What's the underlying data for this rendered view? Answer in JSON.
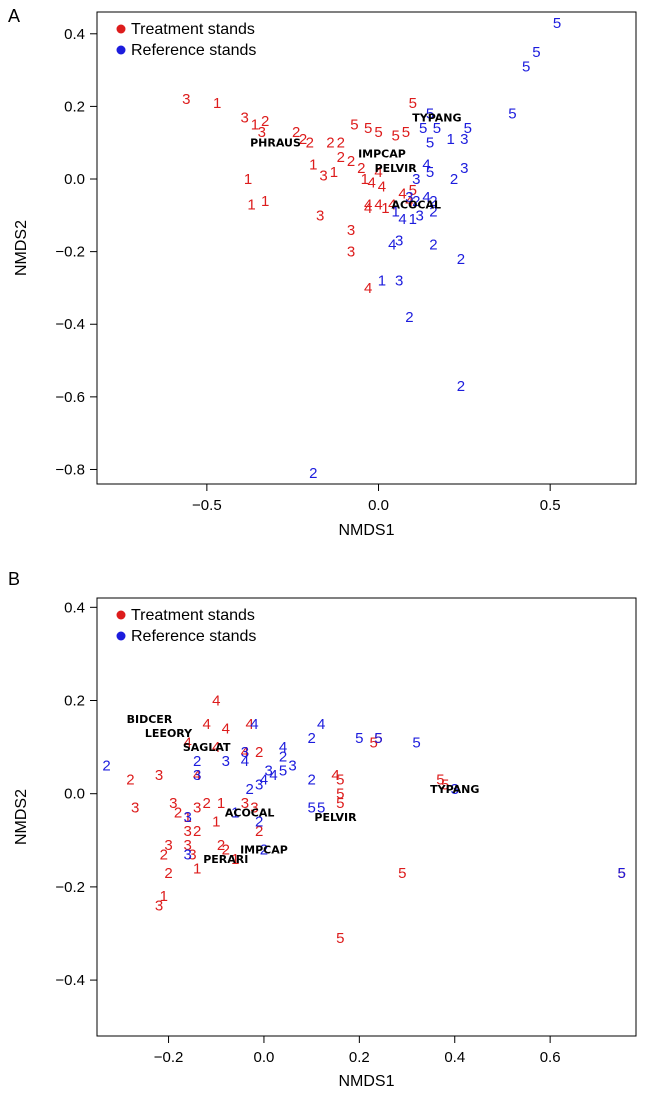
{
  "chart_data": [
    {
      "panel": "A",
      "type": "scatter",
      "xlabel": "NMDS1",
      "ylabel": "NMDS2",
      "xlim": [
        -0.82,
        0.75
      ],
      "ylim": [
        -0.84,
        0.46
      ],
      "xticks": [
        -0.5,
        0.0,
        0.5
      ],
      "yticks": [
        -0.8,
        -0.6,
        -0.4,
        -0.2,
        0.0,
        0.2,
        0.4
      ],
      "xtick_labels": [
        "−0.5",
        "0.0",
        "0.5"
      ],
      "ytick_labels": [
        "−0.8",
        "−0.6",
        "−0.4",
        "−0.2",
        "0.0",
        "0.2",
        "0.4"
      ],
      "legend": {
        "position": "top-left",
        "entries": [
          {
            "label": "Treatment stands",
            "color": "#dd1c1c"
          },
          {
            "label": "Reference stands",
            "color": "#1c1cdd"
          }
        ]
      },
      "series": [
        {
          "name": "Treatment stands",
          "color": "#dd1c1c",
          "points": [
            {
              "x": -0.56,
              "y": 0.22,
              "label": "3"
            },
            {
              "x": -0.47,
              "y": 0.21,
              "label": "1"
            },
            {
              "x": -0.39,
              "y": 0.17,
              "label": "3"
            },
            {
              "x": -0.36,
              "y": 0.15,
              "label": "1"
            },
            {
              "x": -0.33,
              "y": 0.16,
              "label": "2"
            },
            {
              "x": -0.34,
              "y": 0.13,
              "label": "3"
            },
            {
              "x": -0.24,
              "y": 0.13,
              "label": "2"
            },
            {
              "x": -0.22,
              "y": 0.11,
              "label": "2"
            },
            {
              "x": -0.2,
              "y": 0.1,
              "label": "2"
            },
            {
              "x": -0.14,
              "y": 0.1,
              "label": "2"
            },
            {
              "x": -0.11,
              "y": 0.1,
              "label": "2"
            },
            {
              "x": -0.07,
              "y": 0.15,
              "label": "5"
            },
            {
              "x": -0.03,
              "y": 0.14,
              "label": "5"
            },
            {
              "x": 0.0,
              "y": 0.13,
              "label": "5"
            },
            {
              "x": 0.05,
              "y": 0.12,
              "label": "5"
            },
            {
              "x": 0.08,
              "y": 0.13,
              "label": "5"
            },
            {
              "x": 0.1,
              "y": 0.21,
              "label": "5"
            },
            {
              "x": -0.38,
              "y": 0.0,
              "label": "1"
            },
            {
              "x": -0.37,
              "y": -0.07,
              "label": "1"
            },
            {
              "x": -0.33,
              "y": -0.06,
              "label": "1"
            },
            {
              "x": -0.19,
              "y": 0.04,
              "label": "1"
            },
            {
              "x": -0.16,
              "y": 0.01,
              "label": "3"
            },
            {
              "x": -0.13,
              "y": 0.02,
              "label": "1"
            },
            {
              "x": -0.11,
              "y": 0.06,
              "label": "2"
            },
            {
              "x": -0.08,
              "y": 0.05,
              "label": "2"
            },
            {
              "x": -0.05,
              "y": 0.03,
              "label": "2"
            },
            {
              "x": -0.04,
              "y": 0.0,
              "label": "1"
            },
            {
              "x": -0.02,
              "y": -0.01,
              "label": "4"
            },
            {
              "x": 0.0,
              "y": 0.02,
              "label": "4"
            },
            {
              "x": 0.01,
              "y": -0.02,
              "label": "4"
            },
            {
              "x": -0.03,
              "y": -0.07,
              "label": "4"
            },
            {
              "x": 0.0,
              "y": -0.07,
              "label": "4"
            },
            {
              "x": 0.02,
              "y": -0.08,
              "label": "1"
            },
            {
              "x": 0.04,
              "y": -0.07,
              "label": "4"
            },
            {
              "x": 0.07,
              "y": -0.04,
              "label": "4"
            },
            {
              "x": 0.09,
              "y": -0.06,
              "label": "4"
            },
            {
              "x": 0.1,
              "y": -0.03,
              "label": "5"
            },
            {
              "x": -0.17,
              "y": -0.1,
              "label": "3"
            },
            {
              "x": -0.08,
              "y": -0.14,
              "label": "3"
            },
            {
              "x": -0.08,
              "y": -0.2,
              "label": "3"
            },
            {
              "x": -0.03,
              "y": -0.08,
              "label": "4"
            },
            {
              "x": -0.03,
              "y": -0.3,
              "label": "4"
            }
          ]
        },
        {
          "name": "Reference stands",
          "color": "#1c1cdd",
          "points": [
            {
              "x": 0.52,
              "y": 0.43,
              "label": "5"
            },
            {
              "x": 0.46,
              "y": 0.35,
              "label": "5"
            },
            {
              "x": 0.43,
              "y": 0.31,
              "label": "5"
            },
            {
              "x": 0.39,
              "y": 0.18,
              "label": "5"
            },
            {
              "x": 0.15,
              "y": 0.18,
              "label": "5"
            },
            {
              "x": 0.13,
              "y": 0.14,
              "label": "5"
            },
            {
              "x": 0.17,
              "y": 0.14,
              "label": "5"
            },
            {
              "x": 0.15,
              "y": 0.1,
              "label": "5"
            },
            {
              "x": 0.26,
              "y": 0.14,
              "label": "5"
            },
            {
              "x": 0.21,
              "y": 0.11,
              "label": "1"
            },
            {
              "x": 0.25,
              "y": 0.11,
              "label": "3"
            },
            {
              "x": 0.14,
              "y": 0.04,
              "label": "4"
            },
            {
              "x": 0.15,
              "y": 0.02,
              "label": "5"
            },
            {
              "x": 0.22,
              "y": 0.0,
              "label": "2"
            },
            {
              "x": 0.25,
              "y": 0.03,
              "label": "3"
            },
            {
              "x": 0.11,
              "y": 0.0,
              "label": "3"
            },
            {
              "x": 0.09,
              "y": -0.05,
              "label": "3"
            },
            {
              "x": 0.11,
              "y": -0.06,
              "label": "2"
            },
            {
              "x": 0.14,
              "y": -0.05,
              "label": "4"
            },
            {
              "x": 0.16,
              "y": -0.09,
              "label": "2"
            },
            {
              "x": 0.05,
              "y": -0.09,
              "label": "1"
            },
            {
              "x": 0.07,
              "y": -0.11,
              "label": "4"
            },
            {
              "x": 0.1,
              "y": -0.11,
              "label": "1"
            },
            {
              "x": 0.12,
              "y": -0.1,
              "label": "3"
            },
            {
              "x": 0.16,
              "y": -0.06,
              "label": "2"
            },
            {
              "x": 0.04,
              "y": -0.18,
              "label": "4"
            },
            {
              "x": 0.06,
              "y": -0.17,
              "label": "3"
            },
            {
              "x": 0.16,
              "y": -0.18,
              "label": "2"
            },
            {
              "x": 0.24,
              "y": -0.22,
              "label": "2"
            },
            {
              "x": 0.01,
              "y": -0.28,
              "label": "1"
            },
            {
              "x": 0.06,
              "y": -0.28,
              "label": "3"
            },
            {
              "x": 0.09,
              "y": -0.38,
              "label": "2"
            },
            {
              "x": 0.24,
              "y": -0.57,
              "label": "2"
            },
            {
              "x": -0.19,
              "y": -0.81,
              "label": "2"
            }
          ]
        }
      ],
      "species": [
        {
          "x": 0.17,
          "y": 0.17,
          "label": "TYPANG"
        },
        {
          "x": -0.3,
          "y": 0.1,
          "label": "PHRAUS"
        },
        {
          "x": 0.01,
          "y": 0.07,
          "label": "IMPCAP"
        },
        {
          "x": 0.05,
          "y": 0.03,
          "label": "PELVIR"
        },
        {
          "x": 0.11,
          "y": -0.07,
          "label": "ACOCAL"
        }
      ]
    },
    {
      "panel": "B",
      "type": "scatter",
      "xlabel": "NMDS1",
      "ylabel": "NMDS2",
      "xlim": [
        -0.35,
        0.78
      ],
      "ylim": [
        -0.52,
        0.42
      ],
      "xticks": [
        -0.2,
        0.0,
        0.2,
        0.4,
        0.6
      ],
      "yticks": [
        -0.4,
        -0.2,
        0.0,
        0.2,
        0.4
      ],
      "xtick_labels": [
        "−0.2",
        "0.0",
        "0.2",
        "0.4",
        "0.6"
      ],
      "ytick_labels": [
        "−0.4",
        "−0.2",
        "0.0",
        "0.2",
        "0.4"
      ],
      "legend": {
        "position": "top-left",
        "entries": [
          {
            "label": "Treatment stands",
            "color": "#dd1c1c"
          },
          {
            "label": "Reference stands",
            "color": "#1c1cdd"
          }
        ]
      },
      "series": [
        {
          "name": "Treatment stands",
          "color": "#dd1c1c",
          "points": [
            {
              "x": -0.1,
              "y": 0.2,
              "label": "4"
            },
            {
              "x": -0.12,
              "y": 0.15,
              "label": "4"
            },
            {
              "x": -0.08,
              "y": 0.14,
              "label": "4"
            },
            {
              "x": -0.03,
              "y": 0.15,
              "label": "4"
            },
            {
              "x": -0.16,
              "y": 0.11,
              "label": "4"
            },
            {
              "x": -0.1,
              "y": 0.1,
              "label": "4"
            },
            {
              "x": -0.04,
              "y": 0.09,
              "label": "4"
            },
            {
              "x": -0.01,
              "y": 0.09,
              "label": "2"
            },
            {
              "x": -0.28,
              "y": 0.03,
              "label": "2"
            },
            {
              "x": -0.22,
              "y": 0.04,
              "label": "3"
            },
            {
              "x": -0.27,
              "y": -0.03,
              "label": "3"
            },
            {
              "x": -0.14,
              "y": 0.04,
              "label": "4"
            },
            {
              "x": -0.19,
              "y": -0.02,
              "label": "3"
            },
            {
              "x": -0.18,
              "y": -0.04,
              "label": "2"
            },
            {
              "x": -0.16,
              "y": -0.05,
              "label": "1"
            },
            {
              "x": -0.14,
              "y": -0.03,
              "label": "3"
            },
            {
              "x": -0.12,
              "y": -0.02,
              "label": "2"
            },
            {
              "x": -0.09,
              "y": -0.02,
              "label": "1"
            },
            {
              "x": -0.04,
              "y": -0.02,
              "label": "3"
            },
            {
              "x": -0.02,
              "y": -0.03,
              "label": "3"
            },
            {
              "x": -0.1,
              "y": -0.06,
              "label": "1"
            },
            {
              "x": -0.16,
              "y": -0.08,
              "label": "3"
            },
            {
              "x": -0.14,
              "y": -0.08,
              "label": "2"
            },
            {
              "x": -0.01,
              "y": -0.08,
              "label": "2"
            },
            {
              "x": -0.2,
              "y": -0.11,
              "label": "3"
            },
            {
              "x": -0.21,
              "y": -0.13,
              "label": "2"
            },
            {
              "x": -0.16,
              "y": -0.11,
              "label": "3"
            },
            {
              "x": -0.09,
              "y": -0.11,
              "label": "2"
            },
            {
              "x": -0.08,
              "y": -0.12,
              "label": "2"
            },
            {
              "x": -0.2,
              "y": -0.17,
              "label": "2"
            },
            {
              "x": -0.15,
              "y": -0.13,
              "label": "3"
            },
            {
              "x": -0.14,
              "y": -0.16,
              "label": "1"
            },
            {
              "x": -0.06,
              "y": -0.14,
              "label": "1"
            },
            {
              "x": -0.21,
              "y": -0.22,
              "label": "1"
            },
            {
              "x": -0.22,
              "y": -0.24,
              "label": "3"
            },
            {
              "x": 0.15,
              "y": 0.04,
              "label": "4"
            },
            {
              "x": 0.16,
              "y": 0.03,
              "label": "5"
            },
            {
              "x": 0.16,
              "y": 0.0,
              "label": "5"
            },
            {
              "x": 0.16,
              "y": -0.02,
              "label": "5"
            },
            {
              "x": 0.23,
              "y": 0.11,
              "label": "5"
            },
            {
              "x": 0.24,
              "y": 0.12,
              "label": "5"
            },
            {
              "x": 0.37,
              "y": 0.03,
              "label": "5"
            },
            {
              "x": 0.38,
              "y": 0.02,
              "label": "5"
            },
            {
              "x": 0.29,
              "y": -0.17,
              "label": "5"
            },
            {
              "x": 0.16,
              "y": -0.31,
              "label": "5"
            },
            {
              "x": 0.75,
              "y": -0.17,
              "label": "5"
            }
          ]
        },
        {
          "name": "Reference stands",
          "color": "#1c1cdd",
          "points": [
            {
              "x": -0.02,
              "y": 0.15,
              "label": "4"
            },
            {
              "x": 0.12,
              "y": 0.15,
              "label": "4"
            },
            {
              "x": 0.1,
              "y": 0.12,
              "label": "2"
            },
            {
              "x": 0.2,
              "y": 0.12,
              "label": "5"
            },
            {
              "x": 0.24,
              "y": 0.12,
              "label": "5"
            },
            {
              "x": 0.32,
              "y": 0.11,
              "label": "5"
            },
            {
              "x": -0.04,
              "y": 0.09,
              "label": "3"
            },
            {
              "x": -0.14,
              "y": 0.07,
              "label": "2"
            },
            {
              "x": -0.08,
              "y": 0.07,
              "label": "3"
            },
            {
              "x": -0.04,
              "y": 0.07,
              "label": "4"
            },
            {
              "x": 0.04,
              "y": 0.08,
              "label": "2"
            },
            {
              "x": 0.04,
              "y": 0.1,
              "label": "4"
            },
            {
              "x": -0.33,
              "y": 0.06,
              "label": "2"
            },
            {
              "x": -0.14,
              "y": 0.04,
              "label": "3"
            },
            {
              "x": 0.01,
              "y": 0.05,
              "label": "3"
            },
            {
              "x": 0.02,
              "y": 0.04,
              "label": "4"
            },
            {
              "x": 0.04,
              "y": 0.05,
              "label": "5"
            },
            {
              "x": 0.06,
              "y": 0.06,
              "label": "3"
            },
            {
              "x": 0.0,
              "y": 0.03,
              "label": "4"
            },
            {
              "x": -0.03,
              "y": 0.01,
              "label": "2"
            },
            {
              "x": -0.01,
              "y": 0.02,
              "label": "3"
            },
            {
              "x": 0.1,
              "y": 0.03,
              "label": "2"
            },
            {
              "x": 0.1,
              "y": -0.03,
              "label": "5"
            },
            {
              "x": 0.12,
              "y": -0.03,
              "label": "5"
            },
            {
              "x": -0.16,
              "y": -0.05,
              "label": "3"
            },
            {
              "x": -0.06,
              "y": -0.04,
              "label": "1"
            },
            {
              "x": -0.01,
              "y": -0.06,
              "label": "2"
            },
            {
              "x": 0.0,
              "y": -0.12,
              "label": "2"
            },
            {
              "x": -0.16,
              "y": -0.13,
              "label": "3"
            },
            {
              "x": 0.4,
              "y": 0.01,
              "label": "3"
            },
            {
              "x": 0.75,
              "y": -0.17,
              "label": "5"
            }
          ]
        }
      ],
      "species": [
        {
          "x": -0.24,
          "y": 0.16,
          "label": "BIDCER"
        },
        {
          "x": -0.2,
          "y": 0.13,
          "label": "LEEORY"
        },
        {
          "x": -0.12,
          "y": 0.1,
          "label": "SAGLAT"
        },
        {
          "x": -0.03,
          "y": -0.04,
          "label": "ACOCAL"
        },
        {
          "x": 0.4,
          "y": 0.01,
          "label": "TYPANG"
        },
        {
          "x": 0.15,
          "y": -0.05,
          "label": "PELVIR"
        },
        {
          "x": 0.0,
          "y": -0.12,
          "label": "IMPCAP"
        },
        {
          "x": -0.08,
          "y": -0.14,
          "label": "PERARI"
        }
      ]
    }
  ]
}
